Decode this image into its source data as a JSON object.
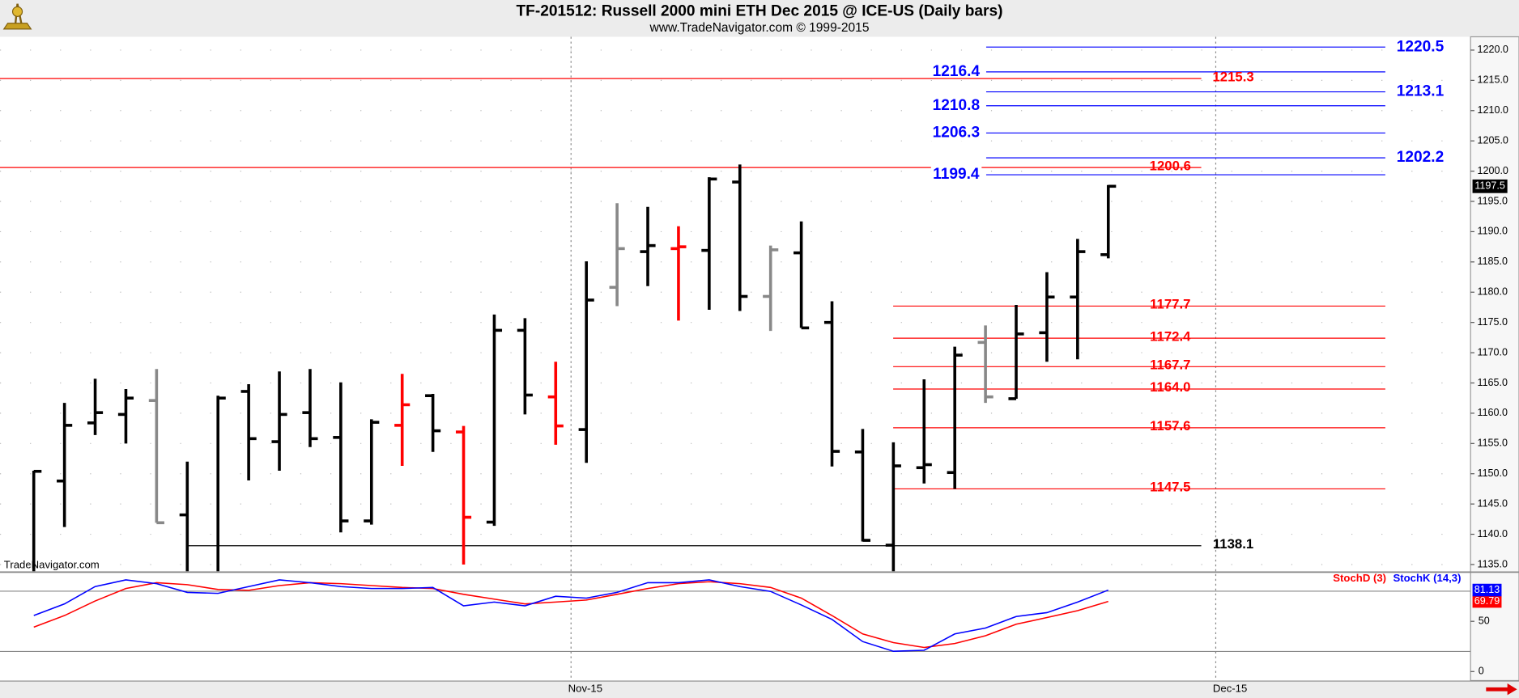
{
  "chart_data": [
    {
      "type": "ohlc",
      "title": "TF-201512:  Russell 2000 mini ETH Dec 2015 @ ICE-US  (Daily bars)",
      "subtitle": "www.TradeNavigator.com © 1999-2015",
      "watermark": "TradeNavigator.com",
      "categories": [
        null,
        null,
        null,
        null,
        null,
        null,
        null,
        null,
        null,
        null,
        null,
        null,
        null,
        null,
        null,
        null,
        null,
        null,
        null,
        null,
        null,
        null,
        null,
        null,
        null,
        null,
        null,
        null,
        null,
        null,
        null,
        null,
        null,
        null,
        null,
        null
      ],
      "xlim": [
        -1.1,
        46.8
      ],
      "xticks": [
        {
          "value": 17.5,
          "label": "Nov-15"
        },
        {
          "value": 38.5,
          "label": "Dec-15"
        }
      ],
      "ylim": [
        1133.9,
        1222.2
      ],
      "yticks": [
        {
          "value": 1135,
          "label": "1135.0"
        },
        {
          "value": 1140,
          "label": "1140.0"
        },
        {
          "value": 1145,
          "label": "1145.0"
        },
        {
          "value": 1150,
          "label": "1150.0"
        },
        {
          "value": 1155,
          "label": "1155.0"
        },
        {
          "value": 1160,
          "label": "1160.0"
        },
        {
          "value": 1165,
          "label": "1165.0"
        },
        {
          "value": 1170,
          "label": "1170.0"
        },
        {
          "value": 1175,
          "label": "1175.0"
        },
        {
          "value": 1180,
          "label": "1180.0"
        },
        {
          "value": 1185,
          "label": "1185.0"
        },
        {
          "value": 1190,
          "label": "1190.0"
        },
        {
          "value": 1195,
          "label": "1195.0"
        },
        {
          "value": 1200,
          "label": "1200.0"
        },
        {
          "value": 1205,
          "label": "1205.0"
        },
        {
          "value": 1210,
          "label": "1210.0"
        },
        {
          "value": 1215,
          "label": "1215.0"
        },
        {
          "value": 1220,
          "label": "1220.0"
        }
      ],
      "grid": true,
      "open": [
        1133,
        1148.8,
        1158.4,
        1159.8,
        1162.1,
        1143.2,
        1133,
        1163.6,
        1155.3,
        1160.1,
        1156.0,
        1142.2,
        1158.0,
        1162.9,
        1156.9,
        1142.0,
        1173.7,
        1162.7,
        1157.3,
        1180.8,
        1186.7,
        1187.2,
        1186.9,
        1198.2,
        1179.3,
        1186.5,
        1175.0,
        1153.6,
        1138.2,
        1151.0,
        1150.2,
        1171.7,
        1162.4,
        1173.3,
        1179.2,
        1186.2
      ],
      "high": [
        1150.5,
        1161.7,
        1165.7,
        1164.0,
        1167.3,
        1152.0,
        1162.9,
        1164.8,
        1166.9,
        1167.3,
        1165.1,
        1159.0,
        1166.5,
        1163.2,
        1157.9,
        1176.3,
        1175.7,
        1168.5,
        1185.1,
        1194.7,
        1194.1,
        1190.9,
        1199.0,
        1201.1,
        1187.7,
        1191.7,
        1178.5,
        1157.4,
        1155.2,
        1165.6,
        1171.0,
        1174.5,
        1177.9,
        1183.3,
        1188.8,
        1197.7
      ],
      "low": [
        1132,
        1141.2,
        1156.4,
        1155.0,
        1141.9,
        1132,
        1133.5,
        1148.9,
        1150.5,
        1154.4,
        1140.3,
        1141.6,
        1151.3,
        1153.6,
        1135.0,
        1141.4,
        1159.8,
        1154.8,
        1151.8,
        1177.7,
        1181.0,
        1175.3,
        1177.1,
        1176.9,
        1173.6,
        1174.1,
        1151.2,
        1138.8,
        1133.5,
        1148.4,
        1147.5,
        1161.7,
        1162.4,
        1168.5,
        1168.9,
        1185.6
      ],
      "close": [
        1150.4,
        1158.0,
        1160.1,
        1162.5,
        1141.9,
        1133,
        1162.5,
        1155.8,
        1159.8,
        1155.8,
        1142.2,
        1158.5,
        1161.4,
        1157.1,
        1142.8,
        1173.7,
        1163.0,
        1157.9,
        1178.7,
        1187.2,
        1187.7,
        1187.5,
        1198.7,
        1179.3,
        1187.0,
        1174.1,
        1153.7,
        1139.0,
        1151.3,
        1151.5,
        1169.6,
        1162.7,
        1173.1,
        1179.2,
        1186.7,
        1197.5
      ],
      "colors": [
        "#000000",
        "#000000",
        "#000000",
        "#000000",
        "#888888",
        "#000000",
        "#000000",
        "#000000",
        "#000000",
        "#000000",
        "#000000",
        "#000000",
        "#ff0000",
        "#000000",
        "#ff0000",
        "#000000",
        "#000000",
        "#ff0000",
        "#000000",
        "#888888",
        "#000000",
        "#ff0000",
        "#000000",
        "#000000",
        "#888888",
        "#000000",
        "#000000",
        "#000000",
        "#000000",
        "#000000",
        "#000000",
        "#888888",
        "#000000",
        "#000000",
        "#000000",
        "#000000"
      ],
      "last_price": 1197.5,
      "levels": [
        {
          "value": 1220.5,
          "color": "#0000ff"
        },
        {
          "value": 1216.4,
          "color": "#0000ff"
        },
        {
          "value": 1215.3,
          "color": "#ff0000"
        },
        {
          "value": 1213.1,
          "color": "#0000ff"
        },
        {
          "value": 1210.8,
          "color": "#0000ff"
        },
        {
          "value": 1206.3,
          "color": "#0000ff"
        },
        {
          "value": 1202.2,
          "color": "#0000ff"
        },
        {
          "value": 1200.6,
          "color": "#ff0000"
        },
        {
          "value": 1199.4,
          "color": "#0000ff"
        },
        {
          "value": 1177.7,
          "color": "#ff0000"
        },
        {
          "value": 1172.4,
          "color": "#ff0000"
        },
        {
          "value": 1167.7,
          "color": "#ff0000"
        },
        {
          "value": 1164.0,
          "label": "1164.0",
          "color": "#ff0000"
        },
        {
          "value": 1157.6,
          "color": "#ff0000"
        },
        {
          "value": 1147.5,
          "color": "#ff0000"
        },
        {
          "value": 1138.1,
          "color": "#000000"
        }
      ]
    },
    {
      "type": "line",
      "ylim": [
        -9,
        98
      ],
      "yticks": [
        0,
        50
      ],
      "reference_lines": [
        20,
        80
      ],
      "series": [
        {
          "name": "StochD (3)",
          "color": "#ff0000",
          "values": [
            44.2,
            55.8,
            70.2,
            82.7,
            88.5,
            86.5,
            81.7,
            80.8,
            85.6,
            88.5,
            87.5,
            85.6,
            83.7,
            82.7,
            76.9,
            72.1,
            67.3,
            69.2,
            71.2,
            76.9,
            82.7,
            87.5,
            89.4,
            87.5,
            83.7,
            73.1,
            55.8,
            37.5,
            28.8,
            24.0,
            27.9,
            35.6,
            47.1,
            53.8,
            60.6,
            69.79
          ]
        },
        {
          "name": "StochK (14,3)",
          "color": "#0000ff",
          "values": [
            55.8,
            67.3,
            84.6,
            91.3,
            87.5,
            78.8,
            77.9,
            84.6,
            91.3,
            88.5,
            84.6,
            82.7,
            82.7,
            83.7,
            65.4,
            69.2,
            65.4,
            75.0,
            73.1,
            78.8,
            88.5,
            88.5,
            91.3,
            84.6,
            79.8,
            66.3,
            51.9,
            29.8,
            20.2,
            21.2,
            37.5,
            43.3,
            54.8,
            58.7,
            69.2,
            81.13
          ]
        }
      ]
    }
  ]
}
